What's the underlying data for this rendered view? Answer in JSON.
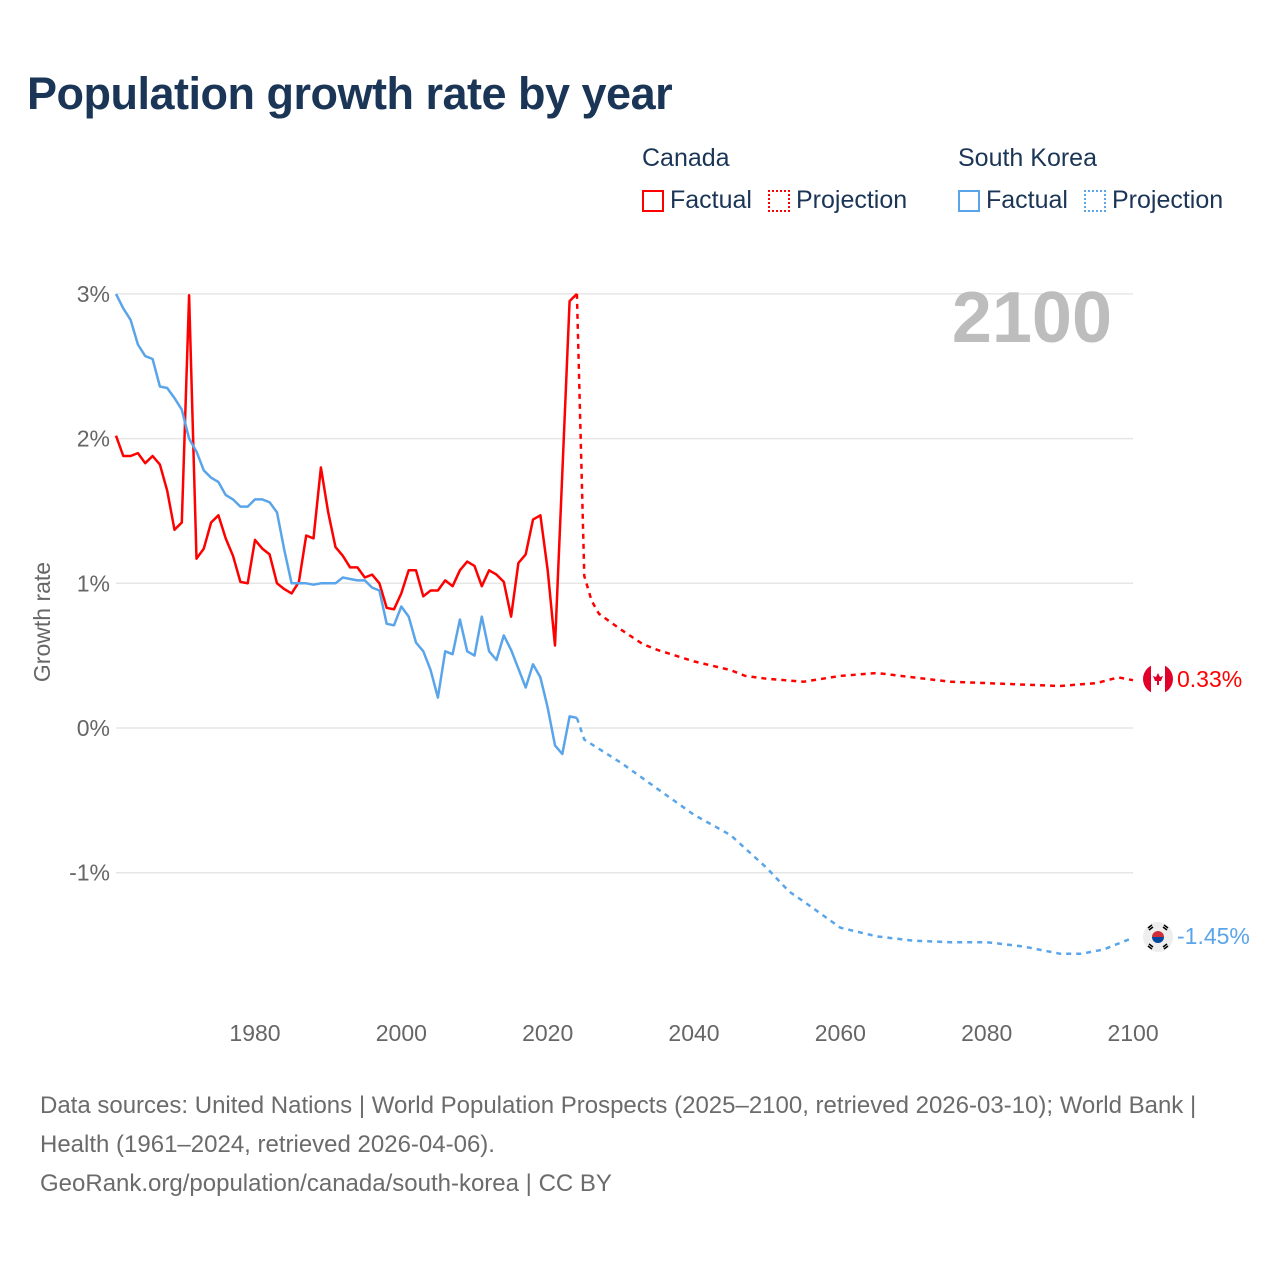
{
  "title": "Population growth rate by year",
  "legend": {
    "groups": [
      {
        "country": "Canada",
        "factual": "Factual",
        "projection": "Projection",
        "color": "#ff0000"
      },
      {
        "country": "South Korea",
        "factual": "Factual",
        "projection": "Projection",
        "color": "#5aa5ea"
      }
    ]
  },
  "year_watermark": "2100",
  "footer": {
    "sources": "Data sources: United Nations | World Population Prospects (2025–2100, retrieved 2026-03-10); World Bank | Health (1961–2024, retrieved 2026-04-06).",
    "link": "GeoRank.org/population/canada/south-korea | CC BY"
  },
  "end_labels": {
    "canada": "0.33%",
    "south_korea": "-1.45%"
  },
  "icons": {
    "canada": "canada-flag-icon",
    "south_korea": "south-korea-flag-icon"
  },
  "chart_data": {
    "type": "line",
    "title": "Population growth rate by year",
    "xlabel": "",
    "ylabel": "Growth rate",
    "xlim": [
      1961,
      2100
    ],
    "ylim": [
      -1.9,
      3.0
    ],
    "x_ticks": [
      1980,
      2000,
      2020,
      2040,
      2060,
      2080,
      2100
    ],
    "x_tick_labels": [
      "1980",
      "2000",
      "2020",
      "2040",
      "2060",
      "2080",
      "2100"
    ],
    "y_ticks": [
      3,
      2,
      1,
      0,
      -1
    ],
    "y_tick_labels": [
      "3%",
      "2%",
      "1%",
      "0%",
      "-1%"
    ],
    "grid": true,
    "legend_position": "top-right",
    "series": [
      {
        "name": "Canada Factual",
        "color": "#ff0000",
        "dashed": false,
        "x": [
          1961,
          1962,
          1963,
          1964,
          1965,
          1966,
          1967,
          1968,
          1969,
          1970,
          1971,
          1972,
          1973,
          1974,
          1975,
          1976,
          1977,
          1978,
          1979,
          1980,
          1981,
          1982,
          1983,
          1984,
          1985,
          1986,
          1987,
          1988,
          1989,
          1990,
          1991,
          1992,
          1993,
          1994,
          1995,
          1996,
          1997,
          1998,
          1999,
          2000,
          2001,
          2002,
          2003,
          2004,
          2005,
          2006,
          2007,
          2008,
          2009,
          2010,
          2011,
          2012,
          2013,
          2014,
          2015,
          2016,
          2017,
          2018,
          2019,
          2020,
          2021,
          2022,
          2023,
          2024
        ],
        "y": [
          2.02,
          1.88,
          1.88,
          1.9,
          1.83,
          1.88,
          1.82,
          1.64,
          1.37,
          1.42,
          2.99,
          1.17,
          1.24,
          1.42,
          1.47,
          1.31,
          1.19,
          1.01,
          1.0,
          1.3,
          1.24,
          1.2,
          1.0,
          0.96,
          0.93,
          1.01,
          1.33,
          1.31,
          1.8,
          1.49,
          1.25,
          1.19,
          1.11,
          1.11,
          1.04,
          1.06,
          1.0,
          0.83,
          0.82,
          0.93,
          1.09,
          1.09,
          0.91,
          0.95,
          0.95,
          1.02,
          0.98,
          1.09,
          1.15,
          1.12,
          0.98,
          1.09,
          1.06,
          1.01,
          0.77,
          1.14,
          1.2,
          1.44,
          1.47,
          1.09,
          0.57,
          1.76,
          2.95,
          3.0
        ]
      },
      {
        "name": "Canada Projection",
        "color": "#ff0000",
        "dashed": true,
        "x": [
          2024,
          2025,
          2026,
          2027,
          2030,
          2033,
          2035,
          2040,
          2045,
          2047,
          2050,
          2055,
          2060,
          2065,
          2070,
          2075,
          2080,
          2085,
          2090,
          2095,
          2098,
          2100
        ],
        "y": [
          3.0,
          1.05,
          0.88,
          0.79,
          0.68,
          0.58,
          0.54,
          0.46,
          0.4,
          0.36,
          0.34,
          0.32,
          0.36,
          0.38,
          0.35,
          0.32,
          0.31,
          0.3,
          0.29,
          0.31,
          0.35,
          0.33
        ]
      },
      {
        "name": "South Korea Factual",
        "color": "#5aa5ea",
        "dashed": false,
        "x": [
          1961,
          1962,
          1963,
          1964,
          1965,
          1966,
          1967,
          1968,
          1969,
          1970,
          1971,
          1972,
          1973,
          1974,
          1975,
          1976,
          1977,
          1978,
          1979,
          1980,
          1981,
          1982,
          1983,
          1984,
          1985,
          1986,
          1987,
          1988,
          1989,
          1990,
          1991,
          1992,
          1993,
          1994,
          1995,
          1996,
          1997,
          1998,
          1999,
          2000,
          2001,
          2002,
          2003,
          2004,
          2005,
          2006,
          2007,
          2008,
          2009,
          2010,
          2011,
          2012,
          2013,
          2014,
          2015,
          2016,
          2017,
          2018,
          2019,
          2020,
          2021,
          2022,
          2023,
          2024
        ],
        "y": [
          3.0,
          2.9,
          2.82,
          2.65,
          2.57,
          2.55,
          2.36,
          2.35,
          2.28,
          2.2,
          2.0,
          1.91,
          1.78,
          1.73,
          1.7,
          1.61,
          1.58,
          1.53,
          1.53,
          1.58,
          1.58,
          1.56,
          1.49,
          1.23,
          1.0,
          1.0,
          1.0,
          0.99,
          1.0,
          1.0,
          1.0,
          1.04,
          1.03,
          1.02,
          1.02,
          0.97,
          0.95,
          0.72,
          0.71,
          0.84,
          0.77,
          0.59,
          0.53,
          0.4,
          0.21,
          0.53,
          0.51,
          0.75,
          0.53,
          0.5,
          0.77,
          0.53,
          0.47,
          0.64,
          0.54,
          0.41,
          0.28,
          0.44,
          0.35,
          0.14,
          -0.12,
          -0.18,
          0.08,
          0.07
        ]
      },
      {
        "name": "South Korea Projection",
        "color": "#5aa5ea",
        "dashed": true,
        "x": [
          2024,
          2025,
          2030,
          2035,
          2040,
          2045,
          2050,
          2053,
          2055,
          2060,
          2065,
          2070,
          2075,
          2080,
          2085,
          2090,
          2093,
          2096,
          2100
        ],
        "y": [
          0.07,
          -0.08,
          -0.24,
          -0.42,
          -0.6,
          -0.74,
          -0.97,
          -1.13,
          -1.2,
          -1.38,
          -1.44,
          -1.47,
          -1.48,
          -1.48,
          -1.51,
          -1.56,
          -1.56,
          -1.53,
          -1.45
        ]
      }
    ]
  }
}
